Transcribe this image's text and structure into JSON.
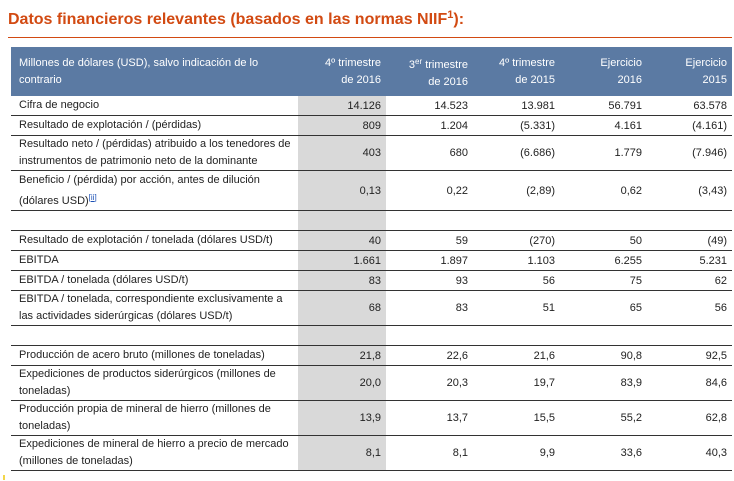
{
  "title": {
    "text": "Datos financieros relevantes (basados en las normas NIIF",
    "sup": "1",
    "tail": "):"
  },
  "header": {
    "label": "Millones de dólares (USD), salvo indicación de lo contrario",
    "cols": [
      {
        "line1_pre": "4º trimestre",
        "sup": "",
        "line2": "de 2016"
      },
      {
        "line1_pre": "3",
        "sup": "er",
        "line1_post": " trimestre",
        "line2": "de 2016"
      },
      {
        "line1_pre": "4º trimestre",
        "sup": "",
        "line2": "de 2015"
      },
      {
        "line1_pre": "Ejercicio",
        "sup": "",
        "line2": "2016"
      },
      {
        "line1_pre": "Ejercicio",
        "sup": "",
        "line2": "2015"
      }
    ]
  },
  "rows": [
    {
      "label": "Cifra de negocio",
      "values": [
        "14.126",
        "14.523",
        "13.981",
        "56.791",
        "63.578"
      ]
    },
    {
      "label": "Resultado de explotación / (pérdidas)",
      "values": [
        "809",
        "1.204",
        "(5.331)",
        "4.161",
        "(4.161)"
      ]
    },
    {
      "label": "Resultado neto / (pérdidas) atribuido a los tenedores de instrumentos de patrimonio neto de la dominante",
      "values": [
        "403",
        "680",
        "(6.686)",
        "1.779",
        "(7.946)"
      ]
    },
    {
      "label": "Beneficio / (pérdida) por acción, antes de dilución (dólares USD)",
      "footnote": "[ii]",
      "values": [
        "0,13",
        "0,22",
        "(2,89)",
        "0,62",
        "(3,43)"
      ]
    },
    {
      "label": "Resultado de explotación / tonelada (dólares USD/t)",
      "values": [
        "40",
        "59",
        "(270)",
        "50",
        "(49)"
      ]
    },
    {
      "label": "EBITDA",
      "values": [
        "1.661",
        "1.897",
        "1.103",
        "6.255",
        "5.231"
      ]
    },
    {
      "label": "EBITDA / tonelada (dólares USD/t)",
      "values": [
        "83",
        "93",
        "56",
        "75",
        "62"
      ]
    },
    {
      "label": "EBITDA / tonelada, correspondiente exclusivamente a las actividades siderúrgicas (dólares USD/t)",
      "values": [
        "68",
        "83",
        "51",
        "65",
        "56"
      ]
    },
    {
      "label": "Producción de acero bruto (millones de toneladas)",
      "values": [
        "21,8",
        "22,6",
        "21,6",
        "90,8",
        "92,5"
      ]
    },
    {
      "label": "Expediciones de productos siderúrgicos (millones de toneladas)",
      "values": [
        "20,0",
        "20,3",
        "19,7",
        "83,9",
        "84,6"
      ]
    },
    {
      "label": "Producción propia de mineral de hierro (millones de toneladas)",
      "values": [
        "13,9",
        "13,7",
        "15,5",
        "55,2",
        "62,8"
      ]
    },
    {
      "label": "Expediciones de mineral de hierro a precio de mercado (millones de toneladas)",
      "values": [
        "8,1",
        "8,1",
        "9,9",
        "33,6",
        "40,3"
      ]
    }
  ],
  "colors": {
    "title": "#d24a12",
    "header_bg": "#5b7aa3",
    "highlight_col": "#d9d9d9",
    "link": "#1a4fb4"
  }
}
